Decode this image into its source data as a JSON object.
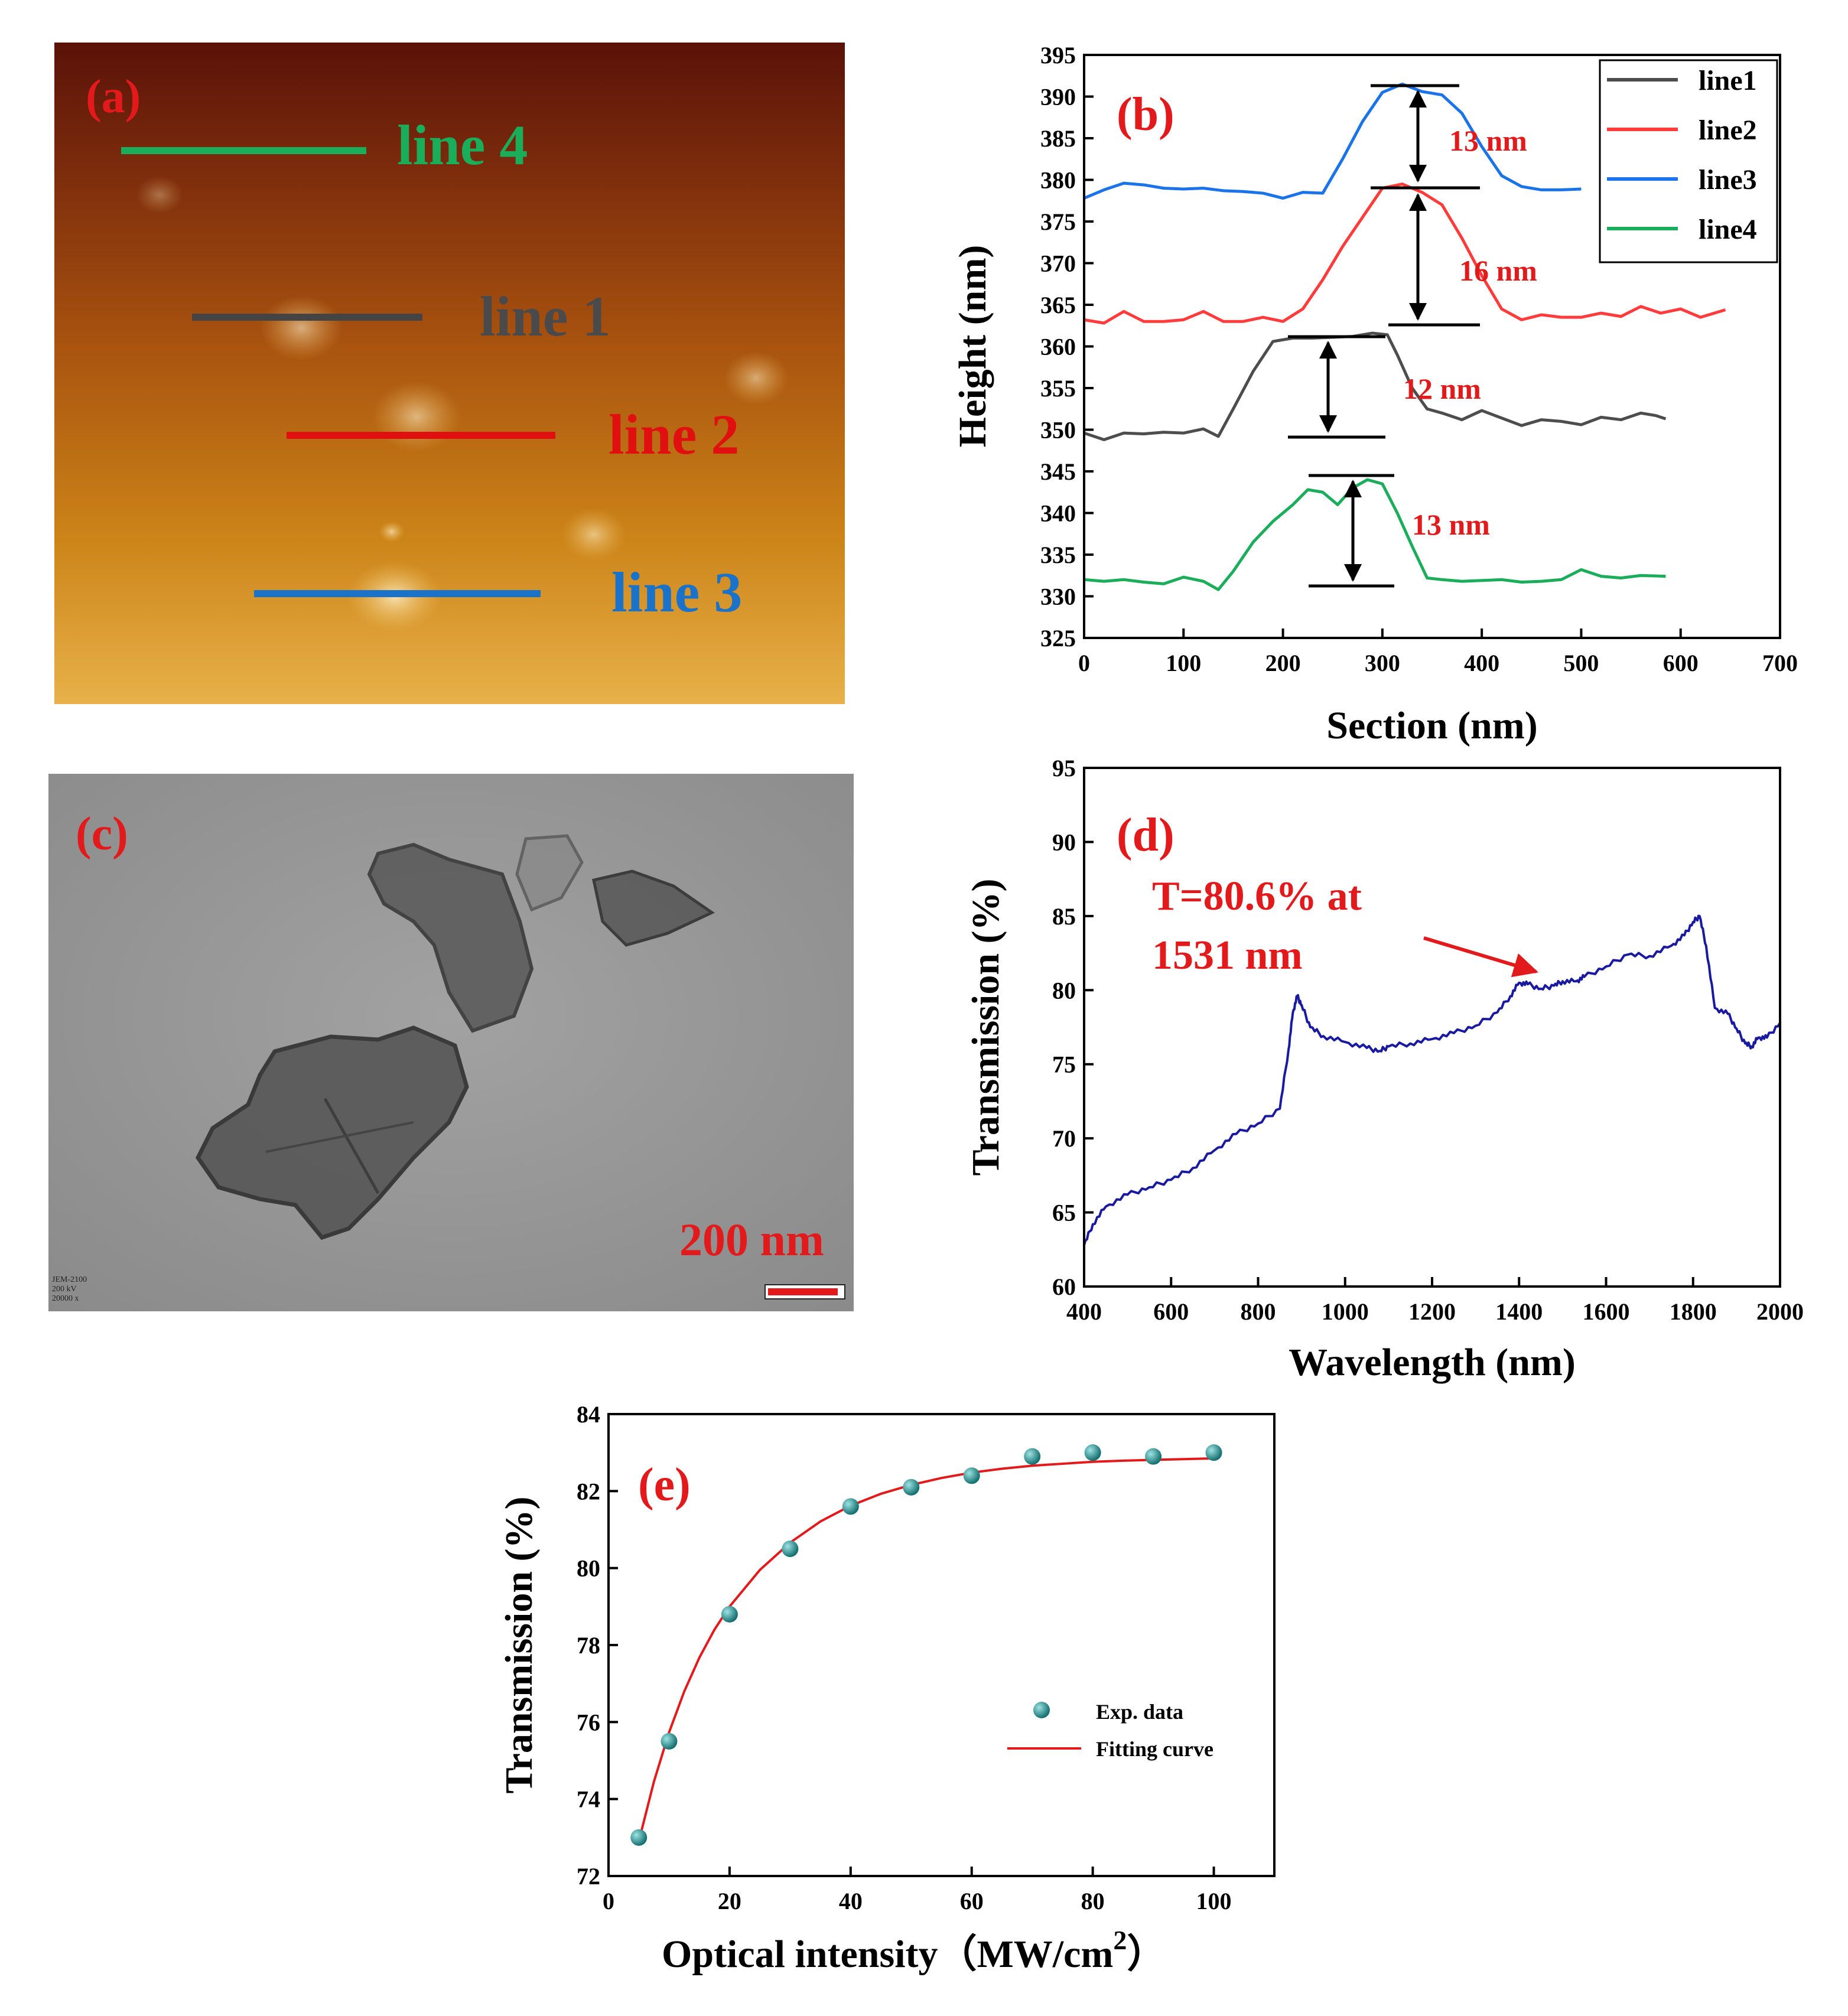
{
  "colors": {
    "line1": "#4d4d4d",
    "line2": "#ff3b3b",
    "line3": "#1a73e8",
    "line4": "#1aad5a",
    "transmission": "#1a1aa0",
    "fit": "#e31a1c",
    "points": "#1a8f8f",
    "annotation": "#e31a1c"
  },
  "panels": {
    "a": {
      "label": "(a)",
      "line_labels": [
        "line 4",
        "line 1",
        "line 2",
        "line 3"
      ]
    },
    "c": {
      "label": "(c)",
      "scale_bar": "200 nm",
      "instrument_text": [
        "JEM-2100",
        "200 kV",
        "20000 x"
      ]
    }
  },
  "chart_data": [
    {
      "panel": "(b)",
      "type": "line",
      "title": "",
      "xlabel": "Section (nm)",
      "ylabel": "Height (nm)",
      "xlim": [
        0,
        700
      ],
      "ylim": [
        325,
        395
      ],
      "xticks": [
        "0",
        "100",
        "200",
        "300",
        "400",
        "500",
        "600",
        "700"
      ],
      "yticks": [
        "325",
        "330",
        "335",
        "340",
        "345",
        "350",
        "355",
        "360",
        "365",
        "370",
        "375",
        "380",
        "385",
        "390",
        "395"
      ],
      "legend": [
        "line1",
        "line2",
        "line3",
        "line4"
      ],
      "legend_position": "top-right",
      "annotations": [
        "13 nm",
        "16 nm",
        "12 nm",
        "13 nm"
      ],
      "series": [
        {
          "name": "line1",
          "x": [
            0,
            20,
            40,
            60,
            80,
            100,
            120,
            135,
            150,
            170,
            190,
            210,
            230,
            250,
            270,
            290,
            305,
            315,
            330,
            345,
            360,
            380,
            400,
            420,
            440,
            460,
            480,
            500,
            520,
            540,
            560,
            575,
            585
          ],
          "y": [
            349.6,
            348.8,
            349.6,
            349.5,
            349.7,
            349.6,
            350.1,
            349.2,
            352.5,
            357.0,
            360.6,
            361.0,
            361.0,
            361.1,
            361.2,
            361.6,
            361.4,
            359.0,
            355.0,
            352.5,
            352.0,
            351.2,
            352.3,
            351.4,
            350.5,
            351.2,
            351.0,
            350.6,
            351.5,
            351.2,
            352.0,
            351.7,
            351.3
          ]
        },
        {
          "name": "line2",
          "x": [
            0,
            20,
            40,
            60,
            80,
            100,
            120,
            140,
            160,
            180,
            200,
            220,
            240,
            260,
            280,
            300,
            320,
            340,
            360,
            380,
            400,
            420,
            440,
            460,
            480,
            500,
            520,
            540,
            560,
            580,
            600,
            620,
            645
          ],
          "y": [
            363.2,
            362.8,
            364.2,
            363.0,
            363.0,
            363.2,
            364.2,
            363.0,
            363.0,
            363.5,
            363.0,
            364.5,
            368.0,
            372.0,
            375.5,
            379.0,
            379.5,
            378.5,
            377.0,
            373.0,
            368.5,
            364.5,
            363.2,
            363.8,
            363.5,
            363.5,
            364.0,
            363.6,
            364.8,
            364.0,
            364.5,
            363.5,
            364.4
          ]
        },
        {
          "name": "line3",
          "x": [
            0,
            20,
            40,
            60,
            80,
            100,
            120,
            140,
            160,
            180,
            200,
            220,
            240,
            260,
            280,
            300,
            320,
            340,
            360,
            380,
            400,
            420,
            440,
            460,
            480,
            500
          ],
          "y": [
            377.8,
            378.8,
            379.6,
            379.4,
            379.0,
            378.9,
            379.0,
            378.7,
            378.6,
            378.4,
            377.8,
            378.5,
            378.4,
            382.5,
            387.0,
            390.5,
            391.5,
            390.6,
            390.2,
            388.0,
            384.0,
            380.5,
            379.2,
            378.8,
            378.8,
            378.9
          ]
        },
        {
          "name": "line4",
          "x": [
            0,
            20,
            40,
            60,
            80,
            100,
            120,
            135,
            150,
            170,
            190,
            210,
            225,
            240,
            255,
            270,
            285,
            300,
            315,
            330,
            345,
            360,
            380,
            400,
            420,
            440,
            460,
            480,
            500,
            520,
            540,
            560,
            585
          ],
          "y": [
            332.0,
            331.8,
            332.0,
            331.7,
            331.5,
            332.3,
            331.8,
            330.8,
            333.0,
            336.5,
            339.0,
            341.0,
            342.8,
            342.5,
            341.0,
            343.0,
            344.0,
            343.5,
            340.0,
            336.0,
            332.2,
            332.0,
            331.8,
            331.9,
            332.0,
            331.7,
            331.8,
            332.0,
            333.2,
            332.4,
            332.2,
            332.5,
            332.4
          ]
        }
      ]
    },
    {
      "panel": "(d)",
      "type": "line",
      "title": "",
      "xlabel": "Wavelength (nm)",
      "ylabel": "Transmission (%)",
      "xlim": [
        400,
        2000
      ],
      "ylim": [
        60,
        95
      ],
      "xticks": [
        "400",
        "600",
        "800",
        "1000",
        "1200",
        "1400",
        "1600",
        "1800",
        "2000"
      ],
      "yticks": [
        "60",
        "65",
        "70",
        "75",
        "80",
        "85",
        "90",
        "95"
      ],
      "annotation": [
        "T=80.6% at",
        "1531 nm"
      ],
      "series": [
        {
          "name": "Transmission",
          "x": [
            400,
            420,
            450,
            500,
            550,
            600,
            650,
            700,
            750,
            800,
            850,
            870,
            880,
            890,
            900,
            920,
            950,
            1000,
            1050,
            1080,
            1100,
            1150,
            1200,
            1250,
            1300,
            1350,
            1380,
            1400,
            1420,
            1450,
            1480,
            1500,
            1531,
            1550,
            1600,
            1650,
            1700,
            1750,
            1780,
            1800,
            1815,
            1830,
            1850,
            1880,
            1900,
            1920,
            1935,
            1950,
            1970,
            2000
          ],
          "y": [
            62.8,
            64.2,
            65.4,
            66.2,
            66.7,
            67.2,
            68.0,
            69.2,
            70.3,
            71.0,
            72.0,
            76.0,
            78.5,
            79.6,
            79.0,
            77.5,
            76.9,
            76.5,
            76.1,
            75.9,
            76.2,
            76.4,
            76.7,
            77.1,
            77.6,
            78.5,
            79.6,
            80.5,
            80.4,
            80.1,
            80.3,
            80.6,
            80.6,
            80.9,
            81.6,
            82.4,
            82.3,
            83.0,
            83.7,
            84.6,
            85.0,
            83.0,
            78.8,
            78.4,
            77.4,
            76.4,
            76.2,
            76.8,
            76.8,
            77.8
          ]
        }
      ]
    },
    {
      "panel": "(e)",
      "type": "scatter",
      "title": "",
      "xlabel": "Optical intensity（MW/cm",
      "xlabel_superscript": "2",
      "xlabel_end": "）",
      "ylabel": "Transmission (%)",
      "xlim": [
        0,
        110
      ],
      "ylim": [
        72,
        84
      ],
      "xticks": [
        "0",
        "20",
        "40",
        "60",
        "80",
        "100"
      ],
      "yticks": [
        "72",
        "74",
        "76",
        "78",
        "80",
        "82",
        "84"
      ],
      "legend": [
        "Exp. data",
        "Fitting curve"
      ],
      "legend_position": "center-right",
      "series": [
        {
          "name": "Exp. data",
          "x": [
            5,
            10,
            20,
            30,
            40,
            50,
            60,
            70,
            80,
            90,
            100
          ],
          "y": [
            73.0,
            75.5,
            78.8,
            80.5,
            81.6,
            82.1,
            82.4,
            82.9,
            83.0,
            82.9,
            83.0
          ]
        },
        {
          "name": "Fitting curve",
          "x": [
            5,
            7.5,
            10,
            12.5,
            15,
            17.5,
            20,
            25,
            30,
            35,
            40,
            45,
            50,
            55,
            60,
            65,
            70,
            75,
            80,
            85,
            90,
            95,
            100
          ],
          "y": [
            72.9,
            74.45,
            75.73,
            76.79,
            77.67,
            78.4,
            79.0,
            79.95,
            80.66,
            81.21,
            81.62,
            81.93,
            82.16,
            82.34,
            82.48,
            82.58,
            82.66,
            82.71,
            82.76,
            82.79,
            82.81,
            82.83,
            82.85
          ]
        }
      ]
    }
  ]
}
